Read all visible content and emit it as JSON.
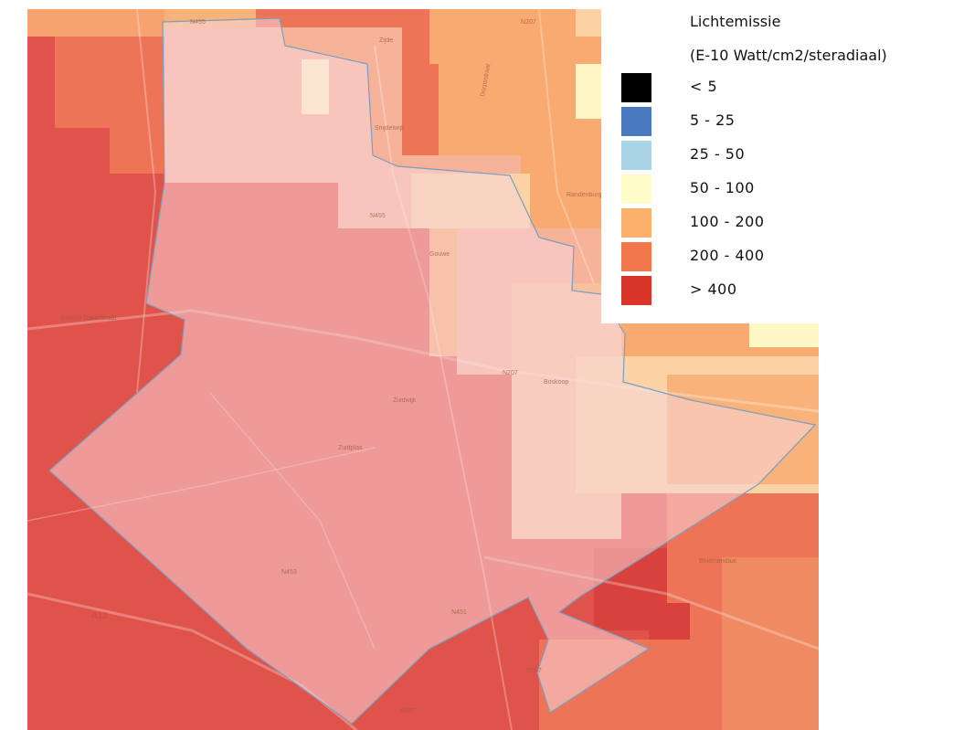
{
  "legend": {
    "title": "Lichtemissie",
    "unit": "(E-10 Watt/cm2/steradiaal)",
    "classes": [
      {
        "label": "< 5",
        "color": "#000000"
      },
      {
        "label": "5 - 25",
        "color": "#4a78bd"
      },
      {
        "label": "25 - 50",
        "color": "#a8d4e6"
      },
      {
        "label": "50 - 100",
        "color": "#fffcc8"
      },
      {
        "label": "100 - 200",
        "color": "#fcb26a"
      },
      {
        "label": "200 - 400",
        "color": "#f2784b"
      },
      {
        "label": "> 400",
        "color": "#d93529"
      }
    ]
  },
  "map": {
    "road_labels": [
      "N455",
      "Zijde",
      "N207",
      "Snijdelwijk",
      "Dorpsstraat",
      "Randenburg",
      "N455",
      "Gouwe",
      "Groene Dukerstraat",
      "N207",
      "Boskoop",
      "Zuidwijk",
      "Zuidplas",
      "N453",
      "N451",
      "N207",
      "N457",
      "A12",
      "Bloemendaal"
    ],
    "colors": {
      "high": "#df534a",
      "mid_high": "#ee7458",
      "mid": "#f9aa71",
      "low": "#fdd3a6",
      "lowest": "#fff7c6",
      "municipality_fill": "#f3c7c9",
      "municipality_border": "#7a9fbd"
    }
  }
}
